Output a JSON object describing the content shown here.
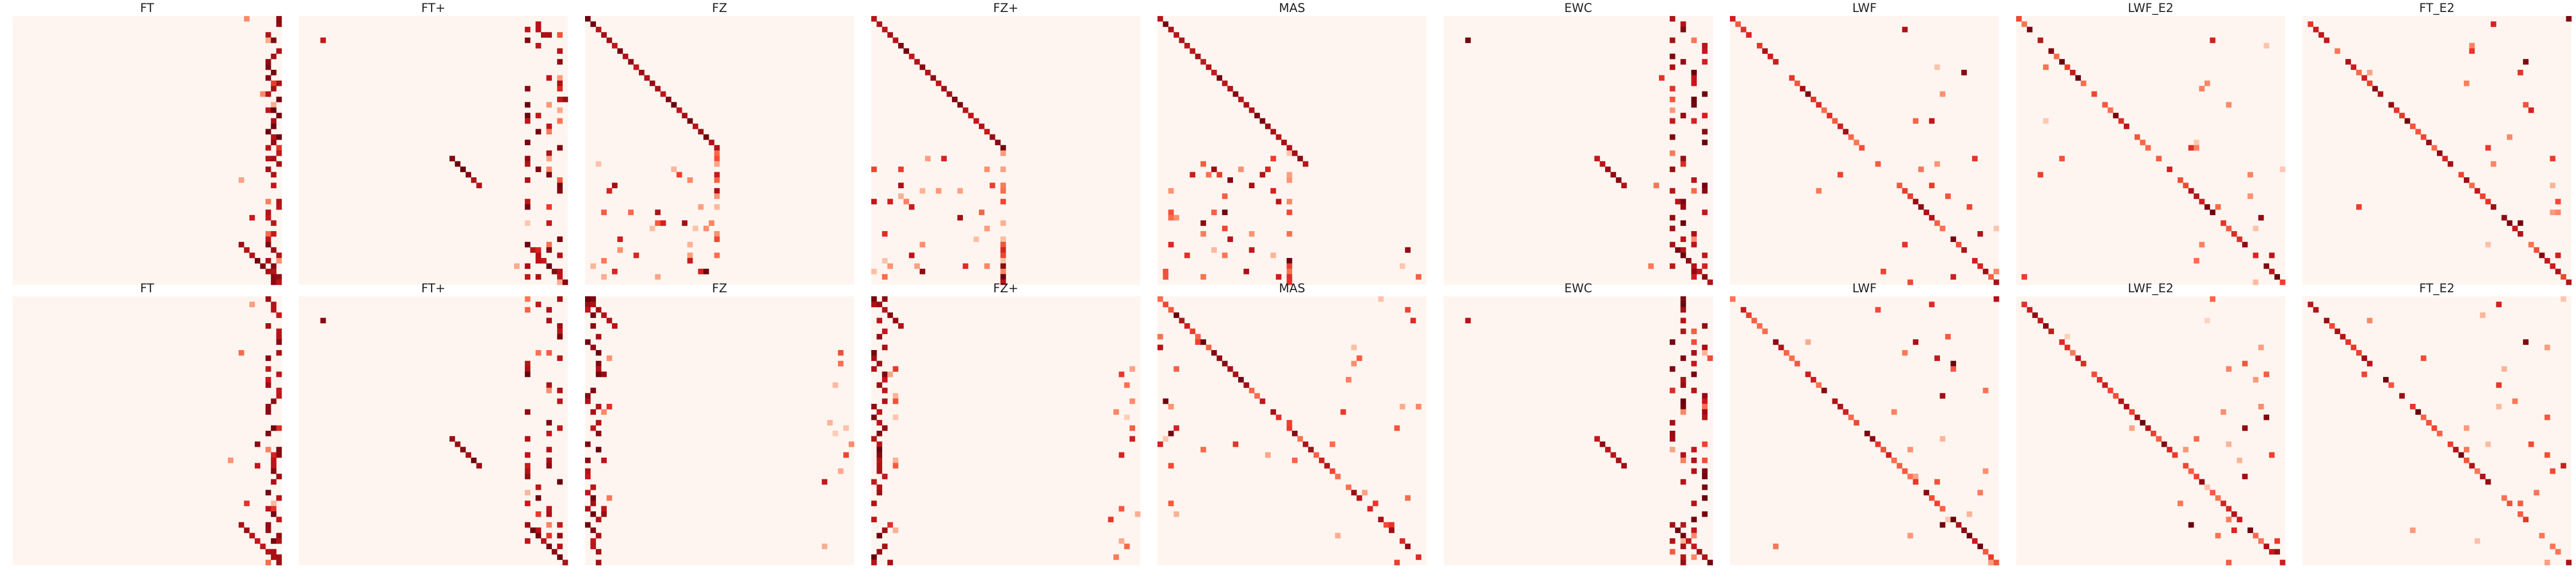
{
  "figure": {
    "rows": [
      [
        "FT",
        "FT+",
        "FZ",
        "FZ+",
        "MAS",
        "EWC",
        "LWF",
        "LWF_E2",
        "FT_E2"
      ],
      [
        "FT",
        "FT+",
        "FZ",
        "FZ+",
        "MAS",
        "EWC",
        "LWF",
        "LWF_E2",
        "FT_E2"
      ]
    ]
  },
  "chart_data": {
    "type": "heatmap",
    "colormap": "Reds",
    "colors": {
      "low": "#fff5f0",
      "mid": "#fb6a4a",
      "high": "#67000d"
    },
    "grid": false,
    "matrix_size": 50,
    "axes_visible": false,
    "panels": [
      {
        "row": 0,
        "title": "FT"
      },
      {
        "row": 0,
        "title": "FT+"
      },
      {
        "row": 0,
        "title": "FZ"
      },
      {
        "row": 0,
        "title": "FZ+"
      },
      {
        "row": 0,
        "title": "MAS"
      },
      {
        "row": 0,
        "title": "EWC"
      },
      {
        "row": 0,
        "title": "LWF"
      },
      {
        "row": 0,
        "title": "LWF_E2"
      },
      {
        "row": 0,
        "title": "FT_E2"
      },
      {
        "row": 1,
        "title": "FT"
      },
      {
        "row": 1,
        "title": "FT+"
      },
      {
        "row": 1,
        "title": "FZ"
      },
      {
        "row": 1,
        "title": "FZ+"
      },
      {
        "row": 1,
        "title": "MAS"
      },
      {
        "row": 1,
        "title": "EWC"
      },
      {
        "row": 1,
        "title": "LWF"
      },
      {
        "row": 1,
        "title": "LWF_E2"
      },
      {
        "row": 1,
        "title": "FT_E2"
      }
    ]
  }
}
